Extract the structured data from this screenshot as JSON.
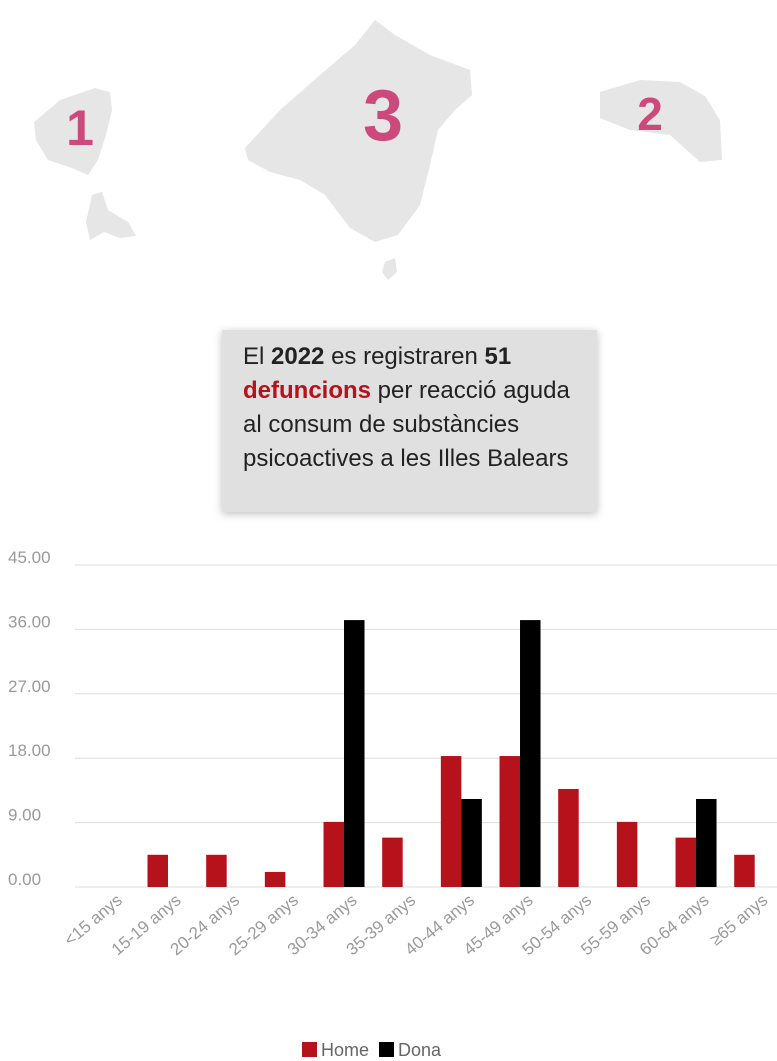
{
  "map": {
    "labels": [
      "1",
      "3",
      "2"
    ]
  },
  "callout": {
    "parts": [
      "El ",
      "2022",
      " es registraren ",
      "51",
      "defuncions",
      " per reacció aguda al consum de substàncies psicoactives a les Illes Balears"
    ]
  },
  "chart_data": {
    "type": "bar",
    "categories": [
      "<15 anys",
      "15-19 anys",
      "20-24 anys",
      "25-29 anys",
      "30-34 anys",
      "35-39 anys",
      "40-44 anys",
      "45-49 anys",
      "50-54 anys",
      "55-59 anys",
      "60-64 anys",
      "≥65 anys"
    ],
    "series": [
      {
        "name": "Home",
        "color": "#b5121b",
        "values": [
          0,
          4.5,
          4.5,
          2.1,
          9.1,
          6.9,
          18.3,
          18.3,
          13.7,
          9.1,
          6.9,
          4.5
        ]
      },
      {
        "name": "Dona",
        "color": "#000000",
        "values": [
          0,
          0,
          0,
          0,
          37.3,
          0,
          12.3,
          37.3,
          0,
          0,
          12.3,
          0
        ]
      }
    ],
    "ylim": [
      0,
      45
    ],
    "yticks": [
      {
        "value": 0,
        "label": "0.00"
      },
      {
        "value": 9,
        "label": "9.00"
      },
      {
        "value": 18,
        "label": "18.00"
      },
      {
        "value": 27,
        "label": "27.00"
      },
      {
        "value": 36,
        "label": "36.00"
      },
      {
        "value": 45,
        "label": "45.00"
      }
    ],
    "grid": true
  }
}
